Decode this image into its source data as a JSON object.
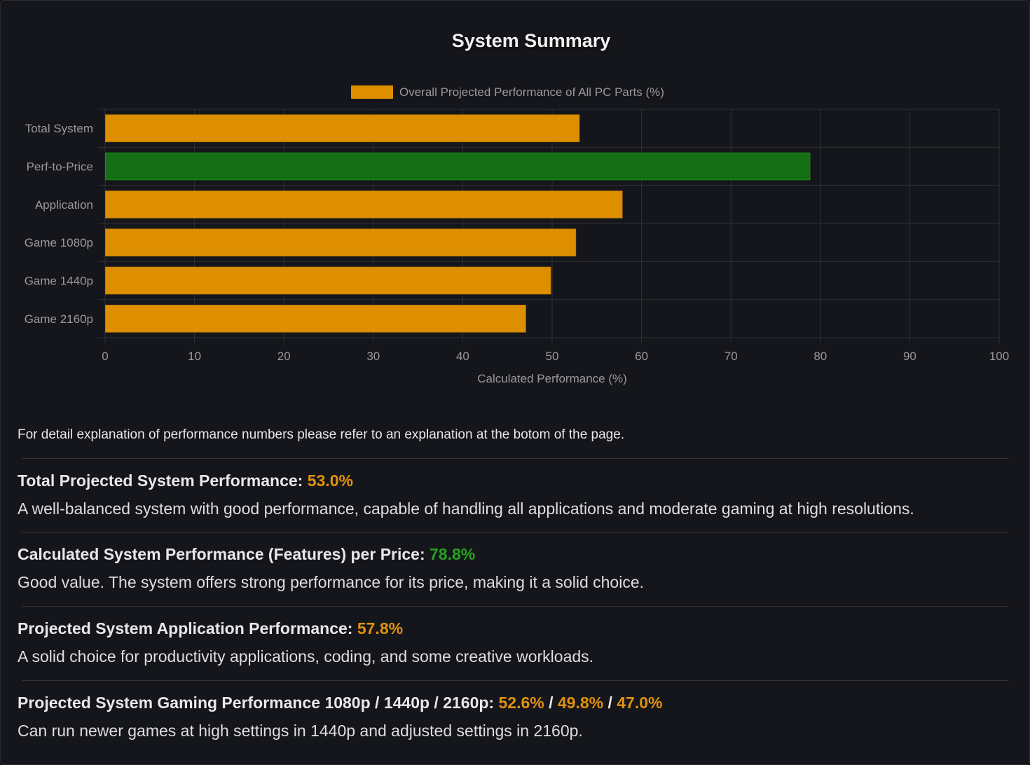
{
  "page": {
    "title": "System Summary",
    "note": "For detail explanation of performance numbers please refer to an explanation at the botom of the page."
  },
  "colors": {
    "orange": "#de8f00",
    "green": "#136e14",
    "grid": "#2e3036",
    "text": "#9a9a9a"
  },
  "chart_data": {
    "type": "bar",
    "orientation": "horizontal",
    "categories": [
      "Total System",
      "Perf-to-Price",
      "Application",
      "Game 1080p",
      "Game 1440p",
      "Game 2160p"
    ],
    "series": [
      {
        "name": "Overall Projected Performance of All PC Parts (%)",
        "values": [
          53.0,
          78.8,
          57.8,
          52.6,
          49.8,
          47.0
        ]
      }
    ],
    "bar_colors": [
      "#de8f00",
      "#136e14",
      "#de8f00",
      "#de8f00",
      "#de8f00",
      "#de8f00"
    ],
    "xlabel": "Calculated Performance (%)",
    "xlim": [
      0,
      100
    ],
    "xticks": [
      0,
      10,
      20,
      30,
      40,
      50,
      60,
      70,
      80,
      90,
      100
    ],
    "grid": true,
    "legend_position": "top"
  },
  "sections": [
    {
      "heading": "Total Projected System Performance: ",
      "value": "53.0%",
      "desc": "A well-balanced system with good performance, capable of handling all applications and moderate gaming at high resolutions."
    },
    {
      "heading": "Calculated System Performance (Features) per Price: ",
      "value": "78.8%",
      "desc": "Good value. The system offers strong performance for its price, making it a solid choice."
    },
    {
      "heading": "Projected System Application Performance: ",
      "value": "57.8%",
      "desc": "A solid choice for productivity applications, coding, and some creative workloads."
    },
    {
      "heading": "Projected System Gaming Performance 1080p / 1440p / 2160p: ",
      "value_1080": "52.6%",
      "sep1": " / ",
      "value_1440": "49.8%",
      "sep2": " / ",
      "value_2160": "47.0%",
      "desc": "Can run newer games at high settings in 1440p and adjusted settings in 2160p."
    }
  ]
}
